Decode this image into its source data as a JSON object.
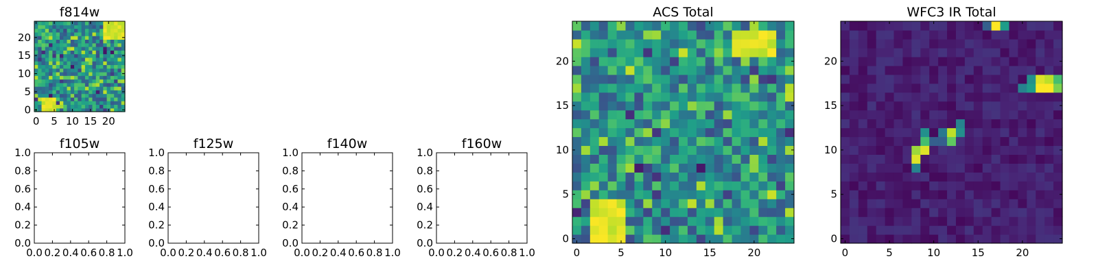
{
  "chart_data": [
    {
      "type": "heatmap",
      "title": "f814w",
      "grid_size": [
        25,
        25
      ],
      "xticks": [
        0,
        5,
        10,
        15,
        20
      ],
      "yticks": [
        0,
        5,
        10,
        15,
        20
      ],
      "xlim": [
        -0.5,
        24.5
      ],
      "ylim": [
        -0.5,
        24.5
      ],
      "colormap": "viridis",
      "features": [
        {
          "region": "x 19-24, y 20-24",
          "level": "high"
        },
        {
          "region": "x 2-5, y 0-3",
          "level": "high"
        }
      ]
    },
    {
      "type": "empty",
      "title": "f105w",
      "xticks": [
        "0.0",
        "0.2",
        "0.4",
        "0.6",
        "0.8",
        "1.0"
      ],
      "yticks": [
        "0.0",
        "0.2",
        "0.4",
        "0.6",
        "0.8",
        "1.0"
      ],
      "xlim": [
        0,
        1
      ],
      "ylim": [
        0,
        1
      ]
    },
    {
      "type": "empty",
      "title": "f125w",
      "xticks": [
        "0.0",
        "0.2",
        "0.4",
        "0.6",
        "0.8",
        "1.0"
      ],
      "yticks": [
        "0.0",
        "0.2",
        "0.4",
        "0.6",
        "0.8",
        "1.0"
      ],
      "xlim": [
        0,
        1
      ],
      "ylim": [
        0,
        1
      ]
    },
    {
      "type": "empty",
      "title": "f140w",
      "xticks": [
        "0.0",
        "0.2",
        "0.4",
        "0.6",
        "0.8",
        "1.0"
      ],
      "yticks": [
        "0.0",
        "0.2",
        "0.4",
        "0.6",
        "0.8",
        "1.0"
      ],
      "xlim": [
        0,
        1
      ],
      "ylim": [
        0,
        1
      ]
    },
    {
      "type": "empty",
      "title": "f160w",
      "xticks": [
        "0.0",
        "0.2",
        "0.4",
        "0.6",
        "0.8",
        "1.0"
      ],
      "yticks": [
        "0.0",
        "0.2",
        "0.4",
        "0.6",
        "0.8",
        "1.0"
      ],
      "xlim": [
        0,
        1
      ],
      "ylim": [
        0,
        1
      ]
    },
    {
      "type": "heatmap",
      "title": "ACS Total",
      "grid_size": [
        25,
        25
      ],
      "xticks": [
        0,
        5,
        10,
        15,
        20
      ],
      "yticks": [
        0,
        5,
        10,
        15,
        20
      ],
      "xlim": [
        -0.5,
        24.5
      ],
      "ylim": [
        -0.5,
        24.5
      ],
      "colormap": "viridis",
      "features": [
        {
          "region": "x 18-22, y 21-23",
          "level": "high"
        },
        {
          "region": "x 2-5, y 0-4",
          "level": "high"
        }
      ]
    },
    {
      "type": "heatmap",
      "title": "WFC3 IR Total",
      "grid_size": [
        25,
        25
      ],
      "xticks": [
        0,
        5,
        10,
        15,
        20
      ],
      "yticks": [
        0,
        5,
        10,
        15,
        20
      ],
      "xlim": [
        -0.5,
        24.5
      ],
      "ylim": [
        -0.5,
        24.5
      ],
      "colormap": "viridis",
      "background_level": "low",
      "hot_pixels": [
        {
          "x": 17,
          "y": 24,
          "v": 1.0
        },
        {
          "x": 18,
          "y": 24,
          "v": 0.55
        },
        {
          "x": 16,
          "y": 24,
          "v": 0.3
        },
        {
          "x": 23,
          "y": 17,
          "v": 1.0
        },
        {
          "x": 22,
          "y": 17,
          "v": 1.0
        },
        {
          "x": 24,
          "y": 17,
          "v": 0.8
        },
        {
          "x": 21,
          "y": 17,
          "v": 0.55
        },
        {
          "x": 20,
          "y": 17,
          "v": 0.45
        },
        {
          "x": 23,
          "y": 18,
          "v": 0.9
        },
        {
          "x": 22,
          "y": 18,
          "v": 0.95
        },
        {
          "x": 24,
          "y": 18,
          "v": 0.7
        },
        {
          "x": 21,
          "y": 18,
          "v": 0.5
        },
        {
          "x": 9,
          "y": 12,
          "v": 0.5
        },
        {
          "x": 9,
          "y": 11,
          "v": 0.7
        },
        {
          "x": 9,
          "y": 10,
          "v": 0.95
        },
        {
          "x": 8,
          "y": 10,
          "v": 0.85
        },
        {
          "x": 8,
          "y": 9,
          "v": 0.95
        },
        {
          "x": 8,
          "y": 8,
          "v": 0.45
        },
        {
          "x": 11,
          "y": 12,
          "v": 0.4
        },
        {
          "x": 12,
          "y": 12,
          "v": 0.9
        },
        {
          "x": 12,
          "y": 11,
          "v": 0.75
        },
        {
          "x": 13,
          "y": 12,
          "v": 0.5
        },
        {
          "x": 13,
          "y": 13,
          "v": 0.45
        },
        {
          "x": 11,
          "y": 11,
          "v": 0.3
        },
        {
          "x": 10,
          "y": 11,
          "v": 0.3
        }
      ]
    }
  ]
}
